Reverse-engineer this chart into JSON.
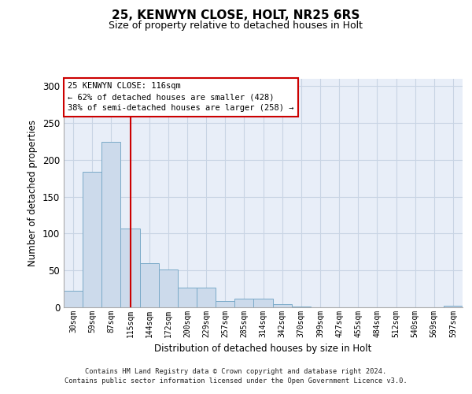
{
  "title1": "25, KENWYN CLOSE, HOLT, NR25 6RS",
  "title2": "Size of property relative to detached houses in Holt",
  "xlabel": "Distribution of detached houses by size in Holt",
  "ylabel": "Number of detached properties",
  "footer1": "Contains HM Land Registry data © Crown copyright and database right 2024.",
  "footer2": "Contains public sector information licensed under the Open Government Licence v3.0.",
  "bin_labels": [
    "30sqm",
    "59sqm",
    "87sqm",
    "115sqm",
    "144sqm",
    "172sqm",
    "200sqm",
    "229sqm",
    "257sqm",
    "285sqm",
    "314sqm",
    "342sqm",
    "370sqm",
    "399sqm",
    "427sqm",
    "455sqm",
    "484sqm",
    "512sqm",
    "540sqm",
    "569sqm",
    "597sqm"
  ],
  "bar_values": [
    22,
    184,
    224,
    107,
    60,
    51,
    27,
    27,
    9,
    12,
    12,
    4,
    1,
    0,
    0,
    0,
    0,
    0,
    0,
    0,
    2
  ],
  "bar_color": "#ccdaeb",
  "bar_edge_color": "#7aaac8",
  "grid_color": "#c8d4e4",
  "background_color": "#e8eef8",
  "red_line_color": "#cc0000",
  "annotation_text": "25 KENWYN CLOSE: 116sqm\n← 62% of detached houses are smaller (428)\n38% of semi-detached houses are larger (258) →",
  "ylim": [
    0,
    310
  ],
  "yticks": [
    0,
    50,
    100,
    150,
    200,
    250,
    300
  ]
}
